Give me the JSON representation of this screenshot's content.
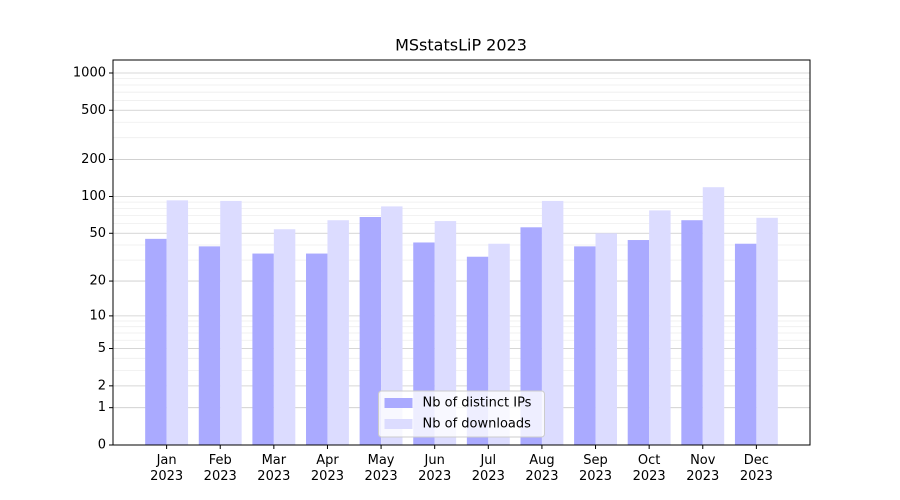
{
  "chart_data": {
    "type": "bar",
    "title": "MSstatsLiP 2023",
    "categories": [
      "Jan\n2023",
      "Feb\n2023",
      "Mar\n2023",
      "Apr\n2023",
      "May\n2023",
      "Jun\n2023",
      "Jul\n2023",
      "Aug\n2023",
      "Sep\n2023",
      "Oct\n2023",
      "Nov\n2023",
      "Dec\n2023"
    ],
    "series": [
      {
        "name": "Nb of distinct IPs",
        "color": "#aaaaff",
        "values": [
          45,
          39,
          34,
          34,
          68,
          42,
          32,
          56,
          39,
          44,
          64,
          41
        ]
      },
      {
        "name": "Nb of downloads",
        "color": "#dcdcff",
        "values": [
          93,
          92,
          54,
          64,
          83,
          63,
          41,
          92,
          50,
          77,
          119,
          67
        ]
      }
    ],
    "yscale": "log1p",
    "ylim": [
      0,
      1273
    ],
    "yticks": [
      0,
      1,
      2,
      5,
      10,
      20,
      50,
      100,
      200,
      500,
      1000
    ],
    "grid": true,
    "legend": "lower center"
  }
}
